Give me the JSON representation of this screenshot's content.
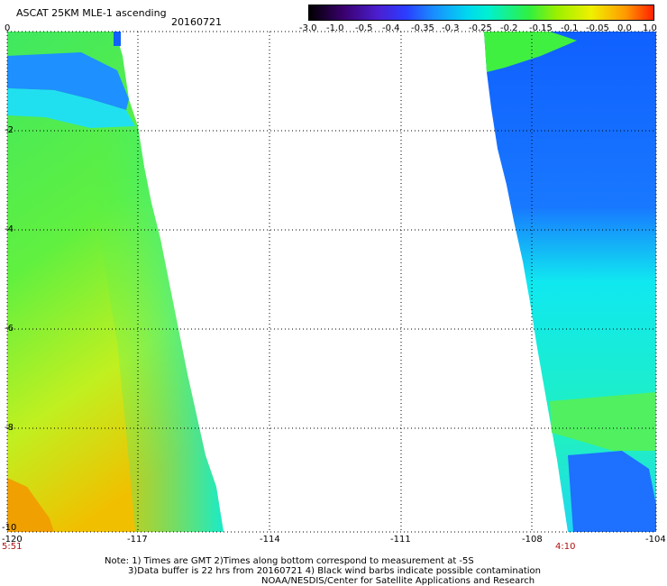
{
  "header": {
    "title": "ASCAT 25KM MLE-1 ascending",
    "date": "20160721"
  },
  "colorbar": {
    "labels": [
      "-3.0",
      "-1.0",
      "-0.5",
      "-0.4",
      "-0.35",
      "-0.3",
      "-0.25",
      "-0.2",
      "-0.15",
      "-0.1",
      "-0.05",
      "0.0",
      "1.0"
    ]
  },
  "map": {
    "x_ticks": [
      "-120",
      "-117",
      "-114",
      "-111",
      "-108",
      "-104"
    ],
    "y_ticks": [
      "0",
      "-2",
      "-4",
      "-6",
      "-8",
      "-10"
    ],
    "time_labels": {
      "left": "5:51",
      "right": "4:10"
    }
  },
  "note": {
    "line1": "Note: 1) Times are GMT 2)Times along bottom correspond to measurement at -5S",
    "line2": "3)Data buffer is 22 hrs from 20160721 4) Black wind barbs indicate possible contamination",
    "line3": "NOAA/NESDIS/Center for Satellite Applications and Research"
  }
}
